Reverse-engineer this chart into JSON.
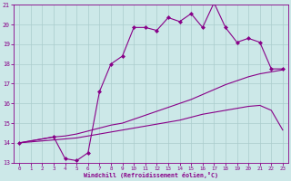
{
  "xlabel": "Windchill (Refroidissement éolien,°C)",
  "background_color": "#cce8e8",
  "grid_color": "#aacccc",
  "line_color": "#880088",
  "xlim": [
    -0.5,
    23.5
  ],
  "ylim": [
    13,
    21
  ],
  "xticks": [
    0,
    1,
    2,
    3,
    4,
    5,
    6,
    7,
    8,
    9,
    10,
    11,
    12,
    13,
    14,
    15,
    16,
    17,
    18,
    19,
    20,
    21,
    22,
    23
  ],
  "yticks": [
    13,
    14,
    15,
    16,
    17,
    18,
    19,
    20,
    21
  ],
  "line1_x": [
    0,
    3,
    4,
    5,
    6,
    7,
    8,
    9,
    10,
    11,
    12,
    13,
    14,
    15,
    16,
    17,
    18,
    19,
    20,
    21,
    22,
    23
  ],
  "line1_y": [
    14.0,
    14.3,
    13.2,
    13.1,
    13.5,
    16.6,
    18.0,
    18.4,
    19.85,
    19.85,
    19.7,
    20.35,
    20.15,
    20.55,
    19.85,
    21.1,
    19.85,
    19.1,
    19.3,
    19.1,
    17.75,
    17.75
  ],
  "line2_x": [
    0,
    1,
    2,
    3,
    4,
    5,
    6,
    7,
    8,
    9,
    10,
    11,
    12,
    13,
    14,
    15,
    16,
    17,
    18,
    19,
    20,
    21,
    22,
    23
  ],
  "line2_y": [
    14.0,
    14.1,
    14.2,
    14.3,
    14.35,
    14.45,
    14.6,
    14.75,
    14.9,
    15.0,
    15.2,
    15.4,
    15.6,
    15.8,
    16.0,
    16.2,
    16.45,
    16.7,
    16.95,
    17.15,
    17.35,
    17.5,
    17.6,
    17.7
  ],
  "line3_x": [
    0,
    1,
    2,
    3,
    4,
    5,
    6,
    7,
    8,
    9,
    10,
    11,
    12,
    13,
    14,
    15,
    16,
    17,
    18,
    19,
    20,
    21,
    22,
    23
  ],
  "line3_y": [
    14.0,
    14.05,
    14.1,
    14.15,
    14.2,
    14.25,
    14.35,
    14.45,
    14.55,
    14.65,
    14.75,
    14.85,
    14.95,
    15.05,
    15.15,
    15.3,
    15.45,
    15.55,
    15.65,
    15.75,
    15.85,
    15.9,
    15.65,
    14.65
  ]
}
